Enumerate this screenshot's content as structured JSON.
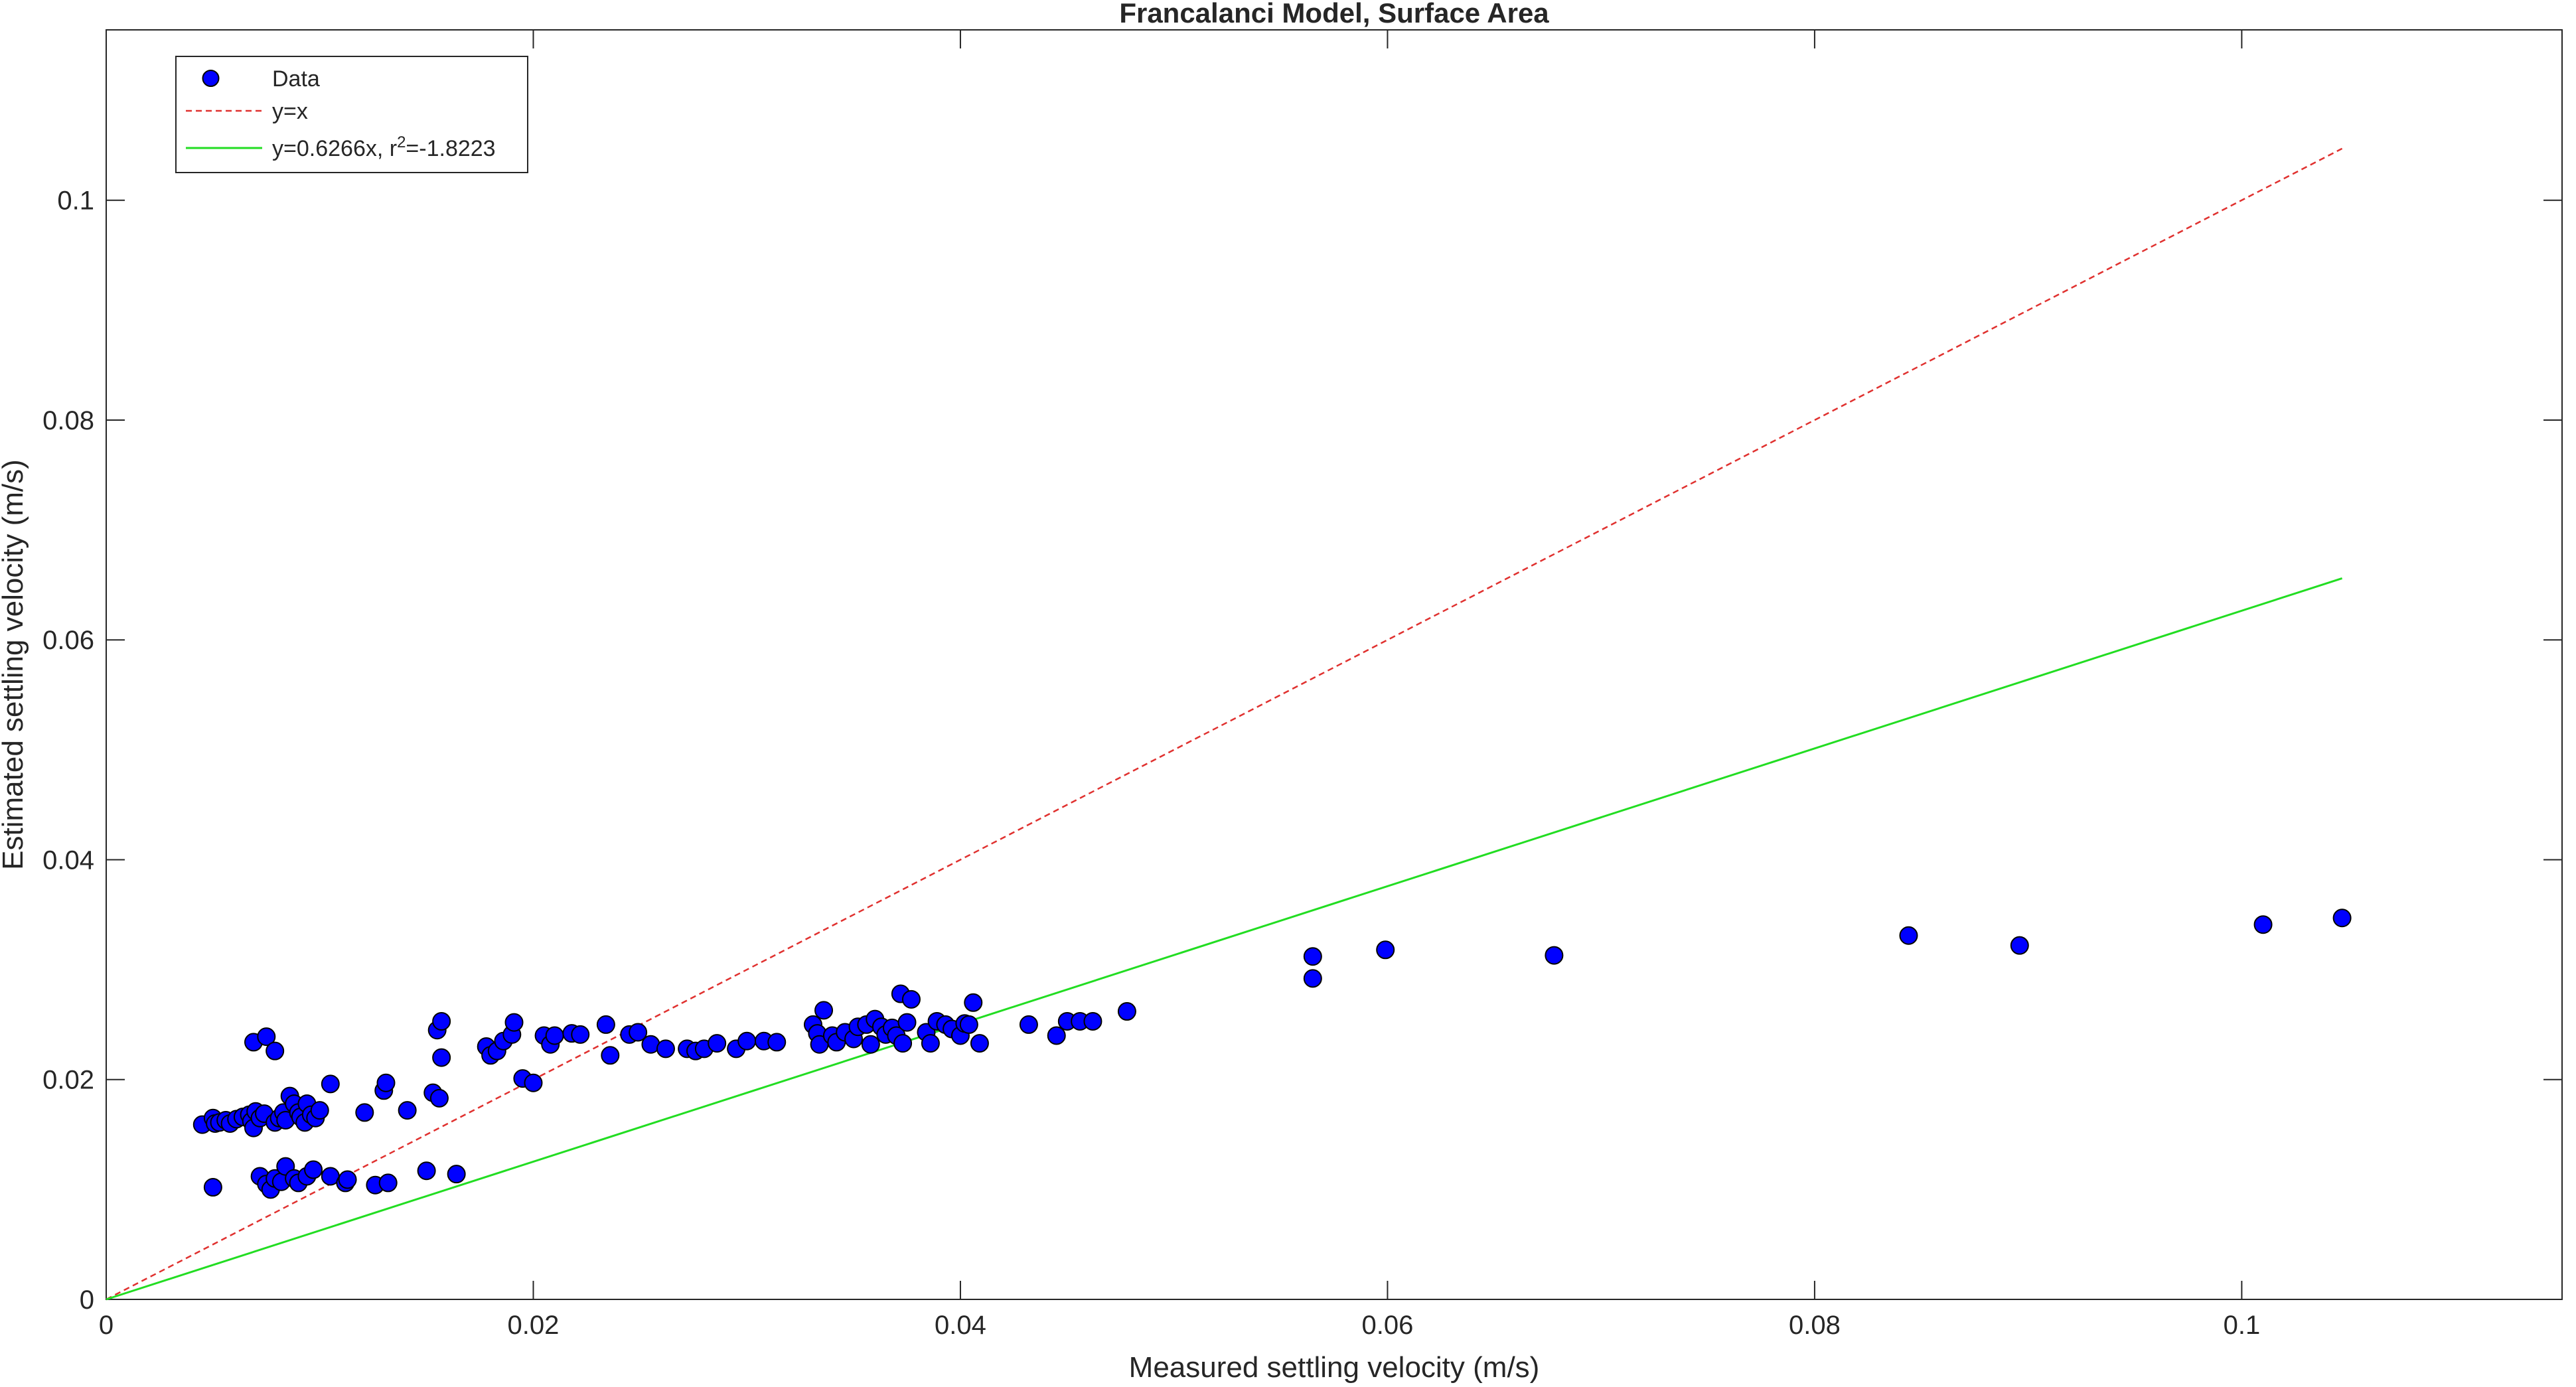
{
  "chart_data": {
    "type": "scatter",
    "title": "Francalanci Model, Surface Area",
    "xlabel": "Measured settling velocity (m/s)",
    "ylabel": "Estimated settling velocity (m/s)",
    "xlim": [
      0,
      0.115
    ],
    "ylim": [
      0,
      0.1155
    ],
    "xticks": [
      0,
      0.02,
      0.04,
      0.06,
      0.08,
      0.1
    ],
    "xtick_labels": [
      "0",
      "0.02",
      "0.04",
      "0.06",
      "0.08",
      "0.1"
    ],
    "yticks": [
      0,
      0.02,
      0.04,
      0.06,
      0.08,
      0.1
    ],
    "ytick_labels": [
      "0",
      "0.02",
      "0.04",
      "0.06",
      "0.08",
      "0.1"
    ],
    "grid": false,
    "legend_position": "top-left",
    "colors": {
      "data": "#0000ff",
      "identity": "#e0312f",
      "fit": "#22dd22",
      "axes": "#262626"
    },
    "series": [
      {
        "name": "Data",
        "style": "markers",
        "points": [
          [
            0.0045,
            0.0159
          ],
          [
            0.005,
            0.0165
          ],
          [
            0.0051,
            0.016
          ],
          [
            0.0053,
            0.0161
          ],
          [
            0.0056,
            0.0163
          ],
          [
            0.0058,
            0.016
          ],
          [
            0.0061,
            0.0164
          ],
          [
            0.0064,
            0.0166
          ],
          [
            0.0067,
            0.0168
          ],
          [
            0.0068,
            0.0162
          ],
          [
            0.0069,
            0.0156
          ],
          [
            0.007,
            0.0171
          ],
          [
            0.0072,
            0.0165
          ],
          [
            0.0074,
            0.0169
          ],
          [
            0.0079,
            0.0161
          ],
          [
            0.0081,
            0.0165
          ],
          [
            0.0083,
            0.017
          ],
          [
            0.0084,
            0.0163
          ],
          [
            0.0086,
            0.0185
          ],
          [
            0.0088,
            0.0178
          ],
          [
            0.009,
            0.017
          ],
          [
            0.0091,
            0.0166
          ],
          [
            0.0093,
            0.0161
          ],
          [
            0.0094,
            0.0178
          ],
          [
            0.0096,
            0.0168
          ],
          [
            0.0098,
            0.0165
          ],
          [
            0.01,
            0.0172
          ],
          [
            0.0105,
            0.0196
          ],
          [
            0.0069,
            0.0234
          ],
          [
            0.0075,
            0.0239
          ],
          [
            0.0079,
            0.0226
          ],
          [
            0.005,
            0.0102
          ],
          [
            0.0072,
            0.0112
          ],
          [
            0.0075,
            0.0105
          ],
          [
            0.0077,
            0.01
          ],
          [
            0.0079,
            0.011
          ],
          [
            0.0082,
            0.0107
          ],
          [
            0.0084,
            0.0121
          ],
          [
            0.0088,
            0.011
          ],
          [
            0.009,
            0.0106
          ],
          [
            0.0094,
            0.0112
          ],
          [
            0.0097,
            0.0118
          ],
          [
            0.0105,
            0.0112
          ],
          [
            0.0112,
            0.0106
          ],
          [
            0.0113,
            0.0109
          ],
          [
            0.0126,
            0.0104
          ],
          [
            0.0132,
            0.0106
          ],
          [
            0.015,
            0.0117
          ],
          [
            0.0164,
            0.0114
          ],
          [
            0.0121,
            0.017
          ],
          [
            0.013,
            0.019
          ],
          [
            0.0131,
            0.0197
          ],
          [
            0.0141,
            0.0172
          ],
          [
            0.0153,
            0.0188
          ],
          [
            0.0155,
            0.0245
          ],
          [
            0.0156,
            0.0183
          ],
          [
            0.0157,
            0.022
          ],
          [
            0.0157,
            0.0253
          ],
          [
            0.0178,
            0.023
          ],
          [
            0.018,
            0.0222
          ],
          [
            0.0183,
            0.0226
          ],
          [
            0.0186,
            0.0235
          ],
          [
            0.019,
            0.0241
          ],
          [
            0.0191,
            0.0252
          ],
          [
            0.0195,
            0.0201
          ],
          [
            0.02,
            0.0197
          ],
          [
            0.0205,
            0.024
          ],
          [
            0.0208,
            0.0232
          ],
          [
            0.021,
            0.024
          ],
          [
            0.0218,
            0.0242
          ],
          [
            0.0222,
            0.0241
          ],
          [
            0.0234,
            0.025
          ],
          [
            0.0236,
            0.0222
          ],
          [
            0.0245,
            0.0241
          ],
          [
            0.0249,
            0.0243
          ],
          [
            0.0255,
            0.0232
          ],
          [
            0.0262,
            0.0228
          ],
          [
            0.0272,
            0.0228
          ],
          [
            0.0276,
            0.0226
          ],
          [
            0.028,
            0.0228
          ],
          [
            0.0286,
            0.0233
          ],
          [
            0.0295,
            0.0228
          ],
          [
            0.03,
            0.0235
          ],
          [
            0.0308,
            0.0235
          ],
          [
            0.0314,
            0.0234
          ],
          [
            0.0331,
            0.025
          ],
          [
            0.0333,
            0.0242
          ],
          [
            0.0334,
            0.0232
          ],
          [
            0.0336,
            0.0263
          ],
          [
            0.034,
            0.024
          ],
          [
            0.0342,
            0.0234
          ],
          [
            0.0346,
            0.0243
          ],
          [
            0.035,
            0.0237
          ],
          [
            0.0352,
            0.0248
          ],
          [
            0.0356,
            0.025
          ],
          [
            0.0358,
            0.0232
          ],
          [
            0.036,
            0.0255
          ],
          [
            0.0363,
            0.0248
          ],
          [
            0.0365,
            0.0241
          ],
          [
            0.0368,
            0.0247
          ],
          [
            0.037,
            0.024
          ],
          [
            0.0372,
            0.0278
          ],
          [
            0.0373,
            0.0233
          ],
          [
            0.0375,
            0.0252
          ],
          [
            0.0377,
            0.0273
          ],
          [
            0.0384,
            0.0243
          ],
          [
            0.0386,
            0.0233
          ],
          [
            0.0389,
            0.0253
          ],
          [
            0.0393,
            0.025
          ],
          [
            0.0396,
            0.0246
          ],
          [
            0.04,
            0.024
          ],
          [
            0.0402,
            0.0251
          ],
          [
            0.0404,
            0.025
          ],
          [
            0.0406,
            0.027
          ],
          [
            0.0409,
            0.0233
          ],
          [
            0.0432,
            0.025
          ],
          [
            0.0445,
            0.024
          ],
          [
            0.045,
            0.0253
          ],
          [
            0.0456,
            0.0253
          ],
          [
            0.0462,
            0.0253
          ],
          [
            0.0478,
            0.0262
          ],
          [
            0.0565,
            0.0312
          ],
          [
            0.0565,
            0.0292
          ],
          [
            0.0599,
            0.0318
          ],
          [
            0.0678,
            0.0313
          ],
          [
            0.0844,
            0.0331
          ],
          [
            0.0896,
            0.0322
          ],
          [
            0.101,
            0.0341
          ],
          [
            0.1047,
            0.0347
          ]
        ]
      },
      {
        "name": "y=x",
        "style": "dashed-line",
        "x": [
          0,
          0.1047
        ],
        "y": [
          0,
          0.1047
        ]
      },
      {
        "name": "y=0.6266x, r",
        "name_superscript": "2",
        "name_suffix": "=-1.8223",
        "style": "solid-line",
        "x": [
          0,
          0.1047
        ],
        "y": [
          0,
          0.0656
        ]
      }
    ]
  }
}
